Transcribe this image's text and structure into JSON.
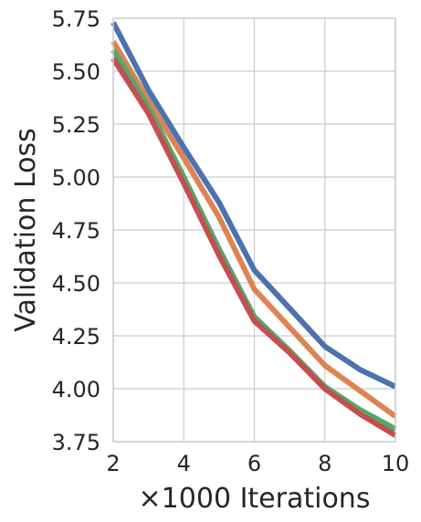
{
  "chart_data": {
    "type": "line",
    "title": "",
    "xlabel": "×1000 Iterations",
    "ylabel": "Validation Loss",
    "xlim": [
      2,
      10
    ],
    "ylim": [
      3.75,
      5.75
    ],
    "xticks": [
      2,
      4,
      6,
      8,
      10
    ],
    "yticks": [
      3.75,
      4.0,
      4.25,
      4.5,
      4.75,
      5.0,
      5.25,
      5.5,
      5.75
    ],
    "xtick_labels": [
      "2",
      "4",
      "6",
      "8",
      "10"
    ],
    "ytick_labels": [
      "3.75",
      "4.00",
      "4.25",
      "4.50",
      "4.75",
      "5.00",
      "5.25",
      "5.50",
      "5.75"
    ],
    "grid": true,
    "legend": "none",
    "x": [
      2,
      3,
      4,
      5,
      6,
      7,
      8,
      9,
      10
    ],
    "series": [
      {
        "color": "#4c72b0",
        "values": [
          5.73,
          5.41,
          5.14,
          4.88,
          4.56,
          4.38,
          4.2,
          4.09,
          4.01
        ]
      },
      {
        "color": "#dd8452",
        "values": [
          5.64,
          5.36,
          5.09,
          4.81,
          4.47,
          4.29,
          4.11,
          3.99,
          3.87
        ]
      },
      {
        "color": "#55a868",
        "values": [
          5.6,
          5.33,
          5.0,
          4.66,
          4.34,
          4.18,
          4.01,
          3.9,
          3.81
        ]
      },
      {
        "color": "#c44e52",
        "values": [
          5.56,
          5.3,
          4.97,
          4.63,
          4.32,
          4.17,
          4.0,
          3.88,
          3.78
        ]
      }
    ]
  }
}
